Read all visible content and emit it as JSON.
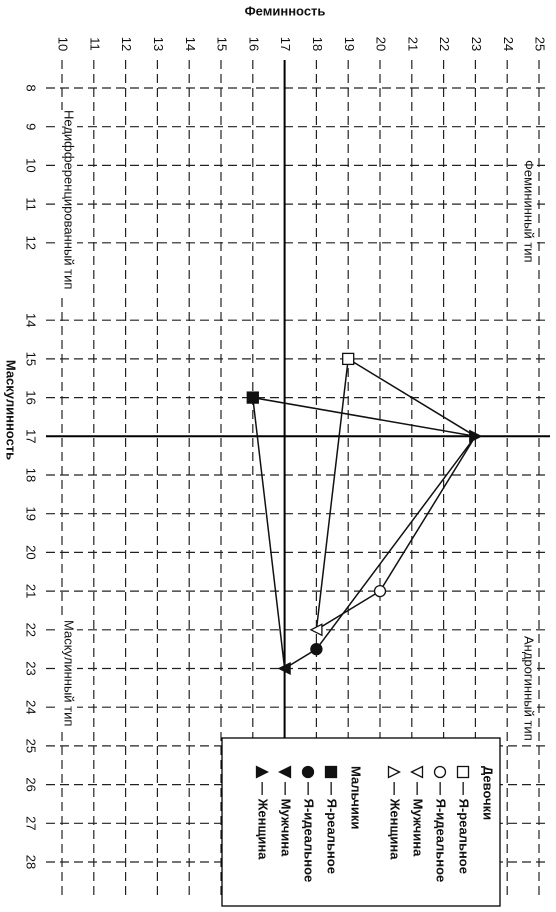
{
  "chart_data": {
    "type": "scatter",
    "xlabel": "Феминность",
    "ylabel": "Маскулинность",
    "xlim": [
      10,
      25
    ],
    "xticks": [
      10,
      11,
      12,
      13,
      14,
      15,
      16,
      17,
      18,
      19,
      20,
      21,
      22,
      23,
      24,
      25
    ],
    "ylim": [
      8,
      28
    ],
    "yticks": [
      8,
      9,
      10,
      11,
      12,
      14,
      15,
      16,
      17,
      18,
      19,
      20,
      21,
      22,
      23,
      24,
      25,
      26,
      27,
      28
    ],
    "grid": true,
    "axis_cross": [
      17,
      17
    ],
    "annotations": [
      "Недифференцированный тип",
      "Фемининный тип",
      "Маскулинный тип",
      "Андрогинный тип"
    ],
    "series": [
      {
        "name": "Девочки",
        "color": "#111111",
        "labels": [
          "— Я-реальное",
          "— Я-идеальное",
          "— Мужчина",
          "— Женщина"
        ],
        "markers": [
          "square-open",
          "circle-open",
          "tri-down-open",
          "tri-up-open"
        ],
        "x": [
          19,
          20,
          18,
          23
        ],
        "values": [
          15,
          21,
          22,
          17
        ]
      },
      {
        "name": "Мальчики",
        "color": "#111111",
        "labels": [
          "— Я-реальное",
          "— Я-идеальное",
          "— Мужчина",
          "— Женщина"
        ],
        "markers": [
          "square",
          "circle",
          "tri-down",
          "tri-up"
        ],
        "x": [
          16,
          18,
          17,
          23
        ],
        "values": [
          16,
          22.5,
          23,
          17
        ]
      }
    ],
    "legend": "bottom-right"
  }
}
